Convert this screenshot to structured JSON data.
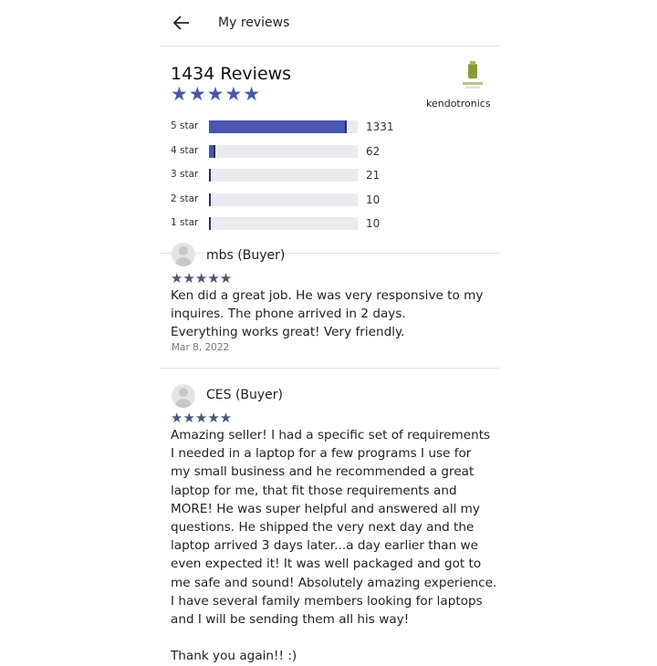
{
  "header": {
    "title": "My reviews",
    "back_icon": "arrow-left-icon"
  },
  "summary": {
    "total_label": "1434 Reviews",
    "average_rating": 5,
    "stars": "★★★★★",
    "seller_name": "kendotronics",
    "accent_color": "#4a56b0",
    "breakdown": [
      {
        "label": "5 star",
        "count": "1331",
        "value": 1331
      },
      {
        "label": "4 star",
        "count": "62",
        "value": 62
      },
      {
        "label": "3 star",
        "count": "21",
        "value": 21
      },
      {
        "label": "2 star",
        "count": "10",
        "value": 10
      },
      {
        "label": "1 star",
        "count": "10",
        "value": 10
      }
    ]
  },
  "reviews": [
    {
      "author": "mbs (Buyer)",
      "stars": "★★★★★",
      "text": "Ken did a great job.  He was very responsive to my\ninquires.  The phone arrived in 2 days.\nEverything works great!  Very friendly.",
      "date": "Mar 8, 2022"
    },
    {
      "author": "CES (Buyer)",
      "stars": "★★★★★",
      "text": "Amazing seller! I had a specific set of requirements\nI needed in a laptop for a few programs I use for\nmy small business and he recommended a great\nlaptop for me, that fit those requirements and\nMORE! He was super helpful and answered all my\nquestions. He shipped the very next day and the\nlaptop arrived 3 days later...a day earlier than we\neven expected it! It was well packaged and got to\nme safe and sound! Absolutely amazing experience.\nI have several family members looking for laptops\nand I will be sending them all his way!\n\nThank you again!! :)"
    }
  ]
}
